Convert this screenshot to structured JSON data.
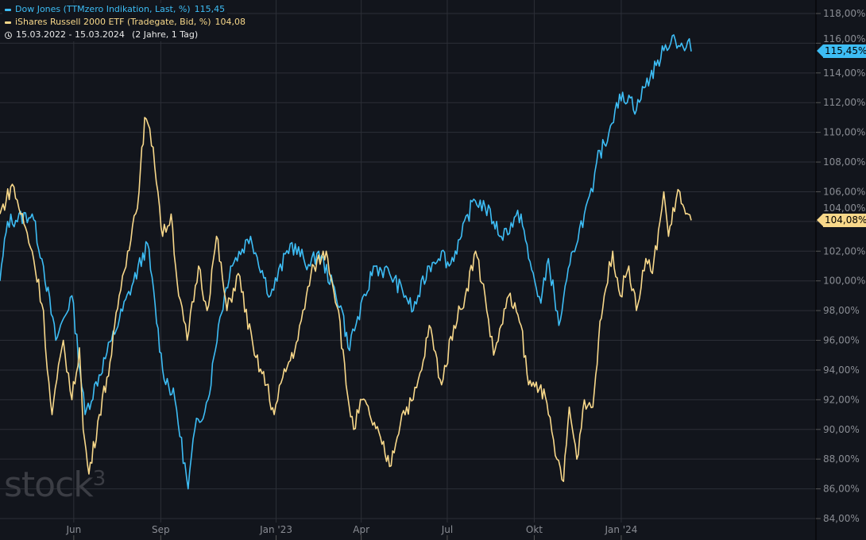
{
  "legend": [
    {
      "label": "Dow Jones (TTMzero Indikation, Last, %)",
      "value": "115,45",
      "color": "#3dbdf5"
    },
    {
      "label": "iShares Russell 2000 ETF (Tradegate, Bid, %)",
      "value": "104,08",
      "color": "#f8d88a"
    }
  ],
  "period": {
    "icon": "clock-icon",
    "range": "15.03.2022 - 15.03.2024",
    "duration": "(2 Jahre, 1 Tag)"
  },
  "logo": "stock3",
  "chart_data": {
    "type": "line",
    "x_range": [
      "2022-03-15",
      "2024-03-15"
    ],
    "ylim": [
      84,
      118
    ],
    "y_unit": "%",
    "y_ticks": [
      "84,00%",
      "86,00%",
      "88,00%",
      "90,00%",
      "92,00%",
      "94,00%",
      "96,00%",
      "98,00%",
      "100,00%",
      "102,00%",
      "104,00%",
      "106,00%",
      "108,00%",
      "110,00%",
      "112,00%",
      "114,00%",
      "116,00%",
      "118,00%"
    ],
    "x_ticks": [
      {
        "label": "Jun",
        "date": "2022-06-01"
      },
      {
        "label": "Sep",
        "date": "2022-09-01"
      },
      {
        "label": "Jan '23",
        "date": "2023-01-01"
      },
      {
        "label": "Apr",
        "date": "2023-04-01"
      },
      {
        "label": "Jul",
        "date": "2023-07-01"
      },
      {
        "label": "Okt",
        "date": "2023-10-01"
      },
      {
        "label": "Jan '24",
        "date": "2024-01-01"
      }
    ],
    "grid": true,
    "series": [
      {
        "name": "Dow Jones (TTMzero Indikation, Last, %)",
        "color": "#3dbdf5",
        "last_label": "115,45%",
        "points": [
          [
            "2022-03-15",
            100
          ],
          [
            "2022-03-23",
            104
          ],
          [
            "2022-04-18",
            104.5
          ],
          [
            "2022-04-30",
            101
          ],
          [
            "2022-05-13",
            96
          ],
          [
            "2022-05-30",
            99
          ],
          [
            "2022-06-13",
            91
          ],
          [
            "2022-07-11",
            96
          ],
          [
            "2022-08-18",
            102.5
          ],
          [
            "2022-09-03",
            94
          ],
          [
            "2022-09-16",
            92
          ],
          [
            "2022-09-30",
            86
          ],
          [
            "2022-10-07",
            90
          ],
          [
            "2022-10-21",
            92
          ],
          [
            "2022-11-01",
            97
          ],
          [
            "2022-11-14",
            101
          ],
          [
            "2022-12-05",
            103
          ],
          [
            "2022-12-26",
            99
          ],
          [
            "2023-01-16",
            102.5
          ],
          [
            "2023-02-06",
            101
          ],
          [
            "2023-02-15",
            102
          ],
          [
            "2023-03-12",
            98
          ],
          [
            "2023-03-18",
            95.5
          ],
          [
            "2023-04-06",
            99
          ],
          [
            "2023-04-14",
            101
          ],
          [
            "2023-05-01",
            100.5
          ],
          [
            "2023-05-18",
            99
          ],
          [
            "2023-05-26",
            98
          ],
          [
            "2023-06-12",
            101
          ],
          [
            "2023-06-25",
            102
          ],
          [
            "2023-07-03",
            101
          ],
          [
            "2023-07-16",
            103
          ],
          [
            "2023-07-29",
            105.5
          ],
          [
            "2023-08-10",
            105
          ],
          [
            "2023-08-19",
            104
          ],
          [
            "2023-08-27",
            103
          ],
          [
            "2023-09-17",
            104.5
          ],
          [
            "2023-09-25",
            101.5
          ],
          [
            "2023-10-08",
            98.5
          ],
          [
            "2023-10-16",
            101.5
          ],
          [
            "2023-10-27",
            97
          ],
          [
            "2023-11-11",
            102
          ],
          [
            "2023-11-23",
            104.5
          ],
          [
            "2023-12-02",
            106
          ],
          [
            "2023-12-06",
            108
          ],
          [
            "2023-12-19",
            110
          ],
          [
            "2023-12-27",
            112
          ],
          [
            "2024-01-09",
            112.5
          ],
          [
            "2024-01-17",
            111.5
          ],
          [
            "2024-01-25",
            113
          ],
          [
            "2024-02-07",
            114.5
          ],
          [
            "2024-02-15",
            115.5
          ],
          [
            "2024-02-24",
            116.5
          ],
          [
            "2024-03-08",
            115.5
          ],
          [
            "2024-03-13",
            116.3
          ],
          [
            "2024-03-15",
            115.45
          ]
        ]
      },
      {
        "name": "iShares Russell 2000 ETF (Tradegate, Bid, %)",
        "color": "#f8d88a",
        "last_label": "104,08%",
        "points": [
          [
            "2022-03-15",
            104.5
          ],
          [
            "2022-03-28",
            106.5
          ],
          [
            "2022-04-18",
            102
          ],
          [
            "2022-04-30",
            98
          ],
          [
            "2022-05-04",
            94
          ],
          [
            "2022-05-09",
            91
          ],
          [
            "2022-05-21",
            96
          ],
          [
            "2022-05-30",
            92
          ],
          [
            "2022-06-07",
            95.5
          ],
          [
            "2022-06-11",
            90
          ],
          [
            "2022-06-17",
            87
          ],
          [
            "2022-06-28",
            91
          ],
          [
            "2022-07-11",
            95
          ],
          [
            "2022-07-19",
            99
          ],
          [
            "2022-07-28",
            102
          ],
          [
            "2022-08-09",
            106
          ],
          [
            "2022-08-15",
            111
          ],
          [
            "2022-08-24",
            109
          ],
          [
            "2022-09-03",
            103
          ],
          [
            "2022-09-12",
            104.5
          ],
          [
            "2022-09-20",
            99
          ],
          [
            "2022-09-29",
            96
          ],
          [
            "2022-10-11",
            101
          ],
          [
            "2022-10-20",
            98
          ],
          [
            "2022-10-30",
            103
          ],
          [
            "2022-11-10",
            98
          ],
          [
            "2022-11-22",
            100.5
          ],
          [
            "2022-12-09",
            95
          ],
          [
            "2022-12-22",
            93
          ],
          [
            "2022-12-30",
            91
          ],
          [
            "2023-01-08",
            93.5
          ],
          [
            "2023-01-24",
            96
          ],
          [
            "2023-02-02",
            99
          ],
          [
            "2023-02-10",
            101
          ],
          [
            "2023-02-23",
            102
          ],
          [
            "2023-03-08",
            98
          ],
          [
            "2023-03-16",
            93
          ],
          [
            "2023-03-24",
            90
          ],
          [
            "2023-04-02",
            92
          ],
          [
            "2023-04-10",
            91
          ],
          [
            "2023-04-23",
            89
          ],
          [
            "2023-05-01",
            87.5
          ],
          [
            "2023-05-14",
            91
          ],
          [
            "2023-05-26",
            92
          ],
          [
            "2023-06-04",
            94
          ],
          [
            "2023-06-12",
            97
          ],
          [
            "2023-06-25",
            93
          ],
          [
            "2023-07-08",
            97
          ],
          [
            "2023-07-20",
            99
          ],
          [
            "2023-07-31",
            102
          ],
          [
            "2023-08-10",
            99
          ],
          [
            "2023-08-19",
            95
          ],
          [
            "2023-08-27",
            97
          ],
          [
            "2023-09-04",
            99
          ],
          [
            "2023-09-17",
            97
          ],
          [
            "2023-09-25",
            93
          ],
          [
            "2023-10-08",
            93
          ],
          [
            "2023-10-16",
            91
          ],
          [
            "2023-10-25",
            88
          ],
          [
            "2023-11-01",
            86.5
          ],
          [
            "2023-11-07",
            91.5
          ],
          [
            "2023-11-15",
            88
          ],
          [
            "2023-11-23",
            92
          ],
          [
            "2023-12-02",
            91.5
          ],
          [
            "2023-12-08",
            96
          ],
          [
            "2023-12-14",
            99
          ],
          [
            "2023-12-23",
            102
          ],
          [
            "2023-12-31",
            99
          ],
          [
            "2024-01-09",
            101
          ],
          [
            "2024-01-17",
            98
          ],
          [
            "2024-01-27",
            101.5
          ],
          [
            "2024-02-03",
            100.5
          ],
          [
            "2024-02-11",
            104
          ],
          [
            "2024-02-15",
            106
          ],
          [
            "2024-02-20",
            103
          ],
          [
            "2024-02-28",
            105.5
          ],
          [
            "2024-03-03",
            106
          ],
          [
            "2024-03-09",
            104.5
          ],
          [
            "2024-03-15",
            104.08
          ]
        ]
      }
    ]
  }
}
